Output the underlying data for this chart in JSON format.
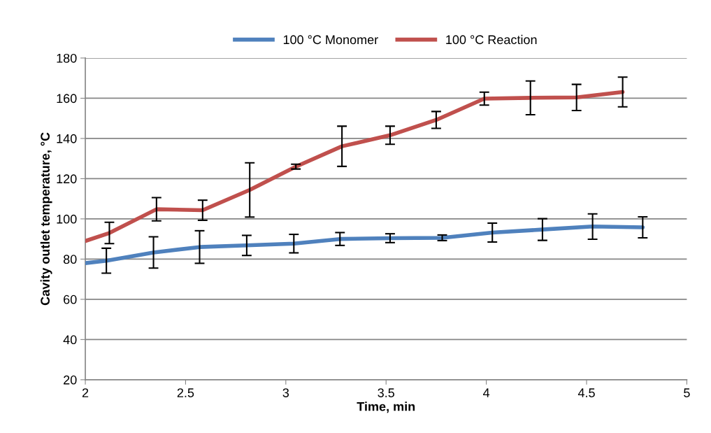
{
  "chart_data": {
    "type": "line",
    "xlabel": "Time, min",
    "ylabel": "Cavity outlet temperature, °C",
    "xlim": [
      2,
      5
    ],
    "xticks": [
      2,
      2.5,
      3,
      3.5,
      4,
      4.5,
      5
    ],
    "ylim": [
      20,
      180
    ],
    "yticks": [
      20,
      40,
      60,
      80,
      100,
      120,
      140,
      160,
      180
    ],
    "grid": "y",
    "legend": "top",
    "marker": "none",
    "line_style": "solid",
    "series": [
      {
        "name": "100 °C Monomer",
        "color": "#4f81bd",
        "x": [
          2,
          2.105,
          2.34,
          2.57,
          2.805,
          3.04,
          3.27,
          3.52,
          3.78,
          4.03,
          4.28,
          4.53,
          4.78
        ],
        "values": [
          78,
          79.2,
          83.3,
          86,
          86.8,
          87.7,
          90,
          90.4,
          90.6,
          93.2,
          94.7,
          96.2,
          95.8
        ],
        "errors": [
          null,
          6.2,
          7.8,
          8.1,
          5,
          4.6,
          3.2,
          2.2,
          1.4,
          4.7,
          5.4,
          6.3,
          5.2
        ]
      },
      {
        "name": "100 °C Reaction",
        "color": "#c0504d",
        "x": [
          2,
          2.12,
          2.355,
          2.585,
          2.82,
          3.05,
          3.28,
          3.52,
          3.75,
          3.99,
          4.22,
          4.45,
          4.68
        ],
        "values": [
          89,
          93,
          104.8,
          104.3,
          114.4,
          126,
          136.1,
          141.6,
          149.2,
          159.8,
          160.2,
          160.4,
          163.1
        ],
        "errors": [
          null,
          5.3,
          5.8,
          5,
          13.5,
          1.2,
          10,
          4.5,
          4.2,
          3.2,
          8.4,
          6.5,
          7.4
        ]
      }
    ]
  }
}
